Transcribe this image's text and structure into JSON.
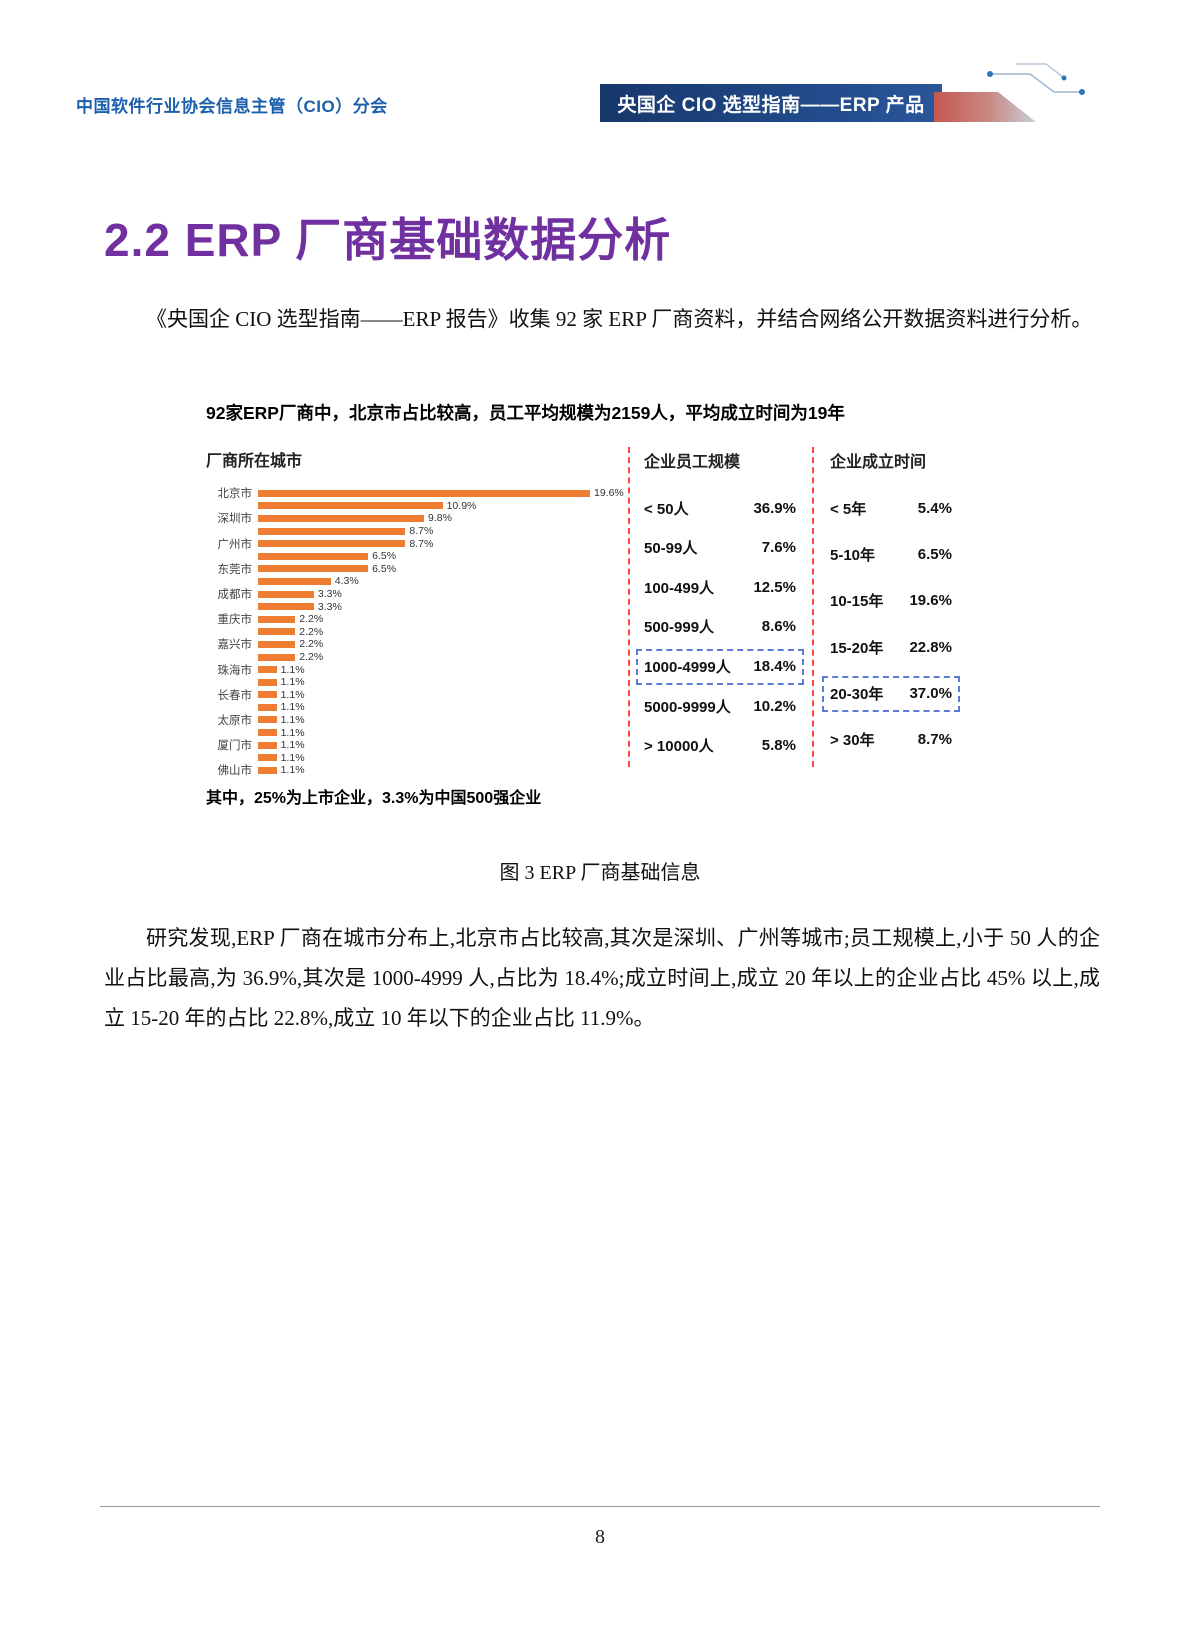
{
  "header": {
    "association": "中国软件行业协会信息主管（CIO）分会",
    "banner": "央国企 CIO 选型指南——ERP 产品"
  },
  "section": {
    "number_title": "2.2 ERP 厂商基础数据分析",
    "intro": "《央国企 CIO 选型指南——ERP 报告》收集 92 家 ERP 厂商资料，并结合网络公开数据资料进行分析。"
  },
  "figure": {
    "headline": "92家ERP厂商中，北京市占比较高，员工平均规模为2159人，平均成立时间为19年",
    "note": "其中，25%为上市企业，3.3%为中国500强企业",
    "caption": "图 3 ERP 厂商基础信息"
  },
  "analysis": "研究发现,ERP 厂商在城市分布上,北京市占比较高,其次是深圳、广州等城市;员工规模上,小于 50 人的企业占比最高,为 36.9%,其次是 1000-4999 人,占比为 18.4%;成立时间上,成立 20 年以上的企业占比 45% 以上,成立 15-20 年的占比 22.8%,成立 10 年以下的企业占比 11.9%。",
  "footer": {
    "page_number": "8"
  },
  "colors": {
    "accent_blue": "#1C5FAC",
    "banner_blue": "#1F4886",
    "title_purple": "#7030A0",
    "bar_orange": "#ED7D31",
    "divider_red": "#FF4545",
    "highlight_blue": "#5B7BD5"
  },
  "chart_data": [
    {
      "type": "bar",
      "orientation": "horizontal",
      "title": "厂商所在城市",
      "unit": "%",
      "xmax": 19.6,
      "bars": [
        {
          "city": "北京市",
          "value": 19.6
        },
        {
          "city": "",
          "value": 10.9
        },
        {
          "city": "深圳市",
          "value": 9.8
        },
        {
          "city": "",
          "value": 8.7
        },
        {
          "city": "广州市",
          "value": 8.7
        },
        {
          "city": "",
          "value": 6.5
        },
        {
          "city": "东莞市",
          "value": 6.5
        },
        {
          "city": "",
          "value": 4.3
        },
        {
          "city": "成都市",
          "value": 3.3
        },
        {
          "city": "",
          "value": 3.3
        },
        {
          "city": "重庆市",
          "value": 2.2
        },
        {
          "city": "",
          "value": 2.2
        },
        {
          "city": "嘉兴市",
          "value": 2.2
        },
        {
          "city": "",
          "value": 2.2
        },
        {
          "city": "珠海市",
          "value": 1.1
        },
        {
          "city": "",
          "value": 1.1
        },
        {
          "city": "长春市",
          "value": 1.1
        },
        {
          "city": "",
          "value": 1.1
        },
        {
          "city": "太原市",
          "value": 1.1
        },
        {
          "city": "",
          "value": 1.1
        },
        {
          "city": "厦门市",
          "value": 1.1
        },
        {
          "city": "",
          "value": 1.1
        },
        {
          "city": "佛山市",
          "value": 1.1
        }
      ]
    },
    {
      "type": "table",
      "title": "企业员工规模",
      "rows": [
        {
          "label": "< 50人",
          "value": "36.9%",
          "highlight": false
        },
        {
          "label": "50-99人",
          "value": "7.6%",
          "highlight": false
        },
        {
          "label": "100-499人",
          "value": "12.5%",
          "highlight": false
        },
        {
          "label": "500-999人",
          "value": "8.6%",
          "highlight": false
        },
        {
          "label": "1000-4999人",
          "value": "18.4%",
          "highlight": true
        },
        {
          "label": "5000-9999人",
          "value": "10.2%",
          "highlight": false
        },
        {
          "label": "> 10000人",
          "value": "5.8%",
          "highlight": false
        }
      ]
    },
    {
      "type": "table",
      "title": "企业成立时间",
      "rows": [
        {
          "label": "< 5年",
          "value": "5.4%",
          "highlight": false
        },
        {
          "label": "5-10年",
          "value": "6.5%",
          "highlight": false
        },
        {
          "label": "10-15年",
          "value": "19.6%",
          "highlight": false
        },
        {
          "label": "15-20年",
          "value": "22.8%",
          "highlight": false
        },
        {
          "label": "20-30年",
          "value": "37.0%",
          "highlight": true
        },
        {
          "label": "> 30年",
          "value": "8.7%",
          "highlight": false
        }
      ]
    }
  ]
}
